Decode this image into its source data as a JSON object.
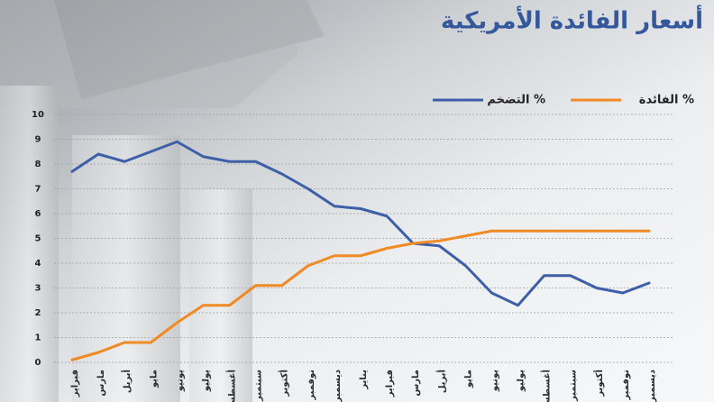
{
  "chart_data": {
    "type": "line",
    "title": "أسعار الفائدة الأمريكية",
    "categories": [
      "فبراير",
      "مارس",
      "أبريل",
      "مايو",
      "يونيو",
      "يوليو",
      "أغسطس",
      "سبتمبر",
      "أكتوبر",
      "نوفمبر",
      "ديسمبر",
      "يناير",
      "فبراير",
      "مارس",
      "أبريل",
      "مايو",
      "يونيو",
      "يوليو",
      "أغسطس",
      "سبتمبر",
      "أكتوبر",
      "نوفمبر",
      "ديسمبر"
    ],
    "series": [
      {
        "name": "التضخم %",
        "color": "#3d5fa8",
        "values": [
          7.7,
          8.4,
          8.1,
          8.5,
          8.9,
          8.3,
          8.1,
          8.1,
          7.6,
          7.0,
          6.3,
          6.2,
          5.9,
          4.8,
          4.7,
          3.9,
          2.8,
          2.3,
          3.5,
          3.5,
          3.0,
          2.8,
          3.2
        ]
      },
      {
        "name": "الفائدة %",
        "color": "#f08a24",
        "values": [
          0.1,
          0.4,
          0.8,
          0.8,
          1.6,
          2.3,
          2.3,
          3.1,
          3.1,
          3.9,
          4.3,
          4.3,
          4.6,
          4.8,
          4.9,
          5.1,
          5.3,
          5.3,
          5.3,
          5.3,
          5.3,
          5.3,
          5.3
        ]
      }
    ],
    "ylim": [
      0,
      10
    ],
    "yticks": [
      0,
      1,
      2,
      3,
      4,
      5,
      6,
      7,
      8,
      9,
      10
    ],
    "grid": true
  }
}
